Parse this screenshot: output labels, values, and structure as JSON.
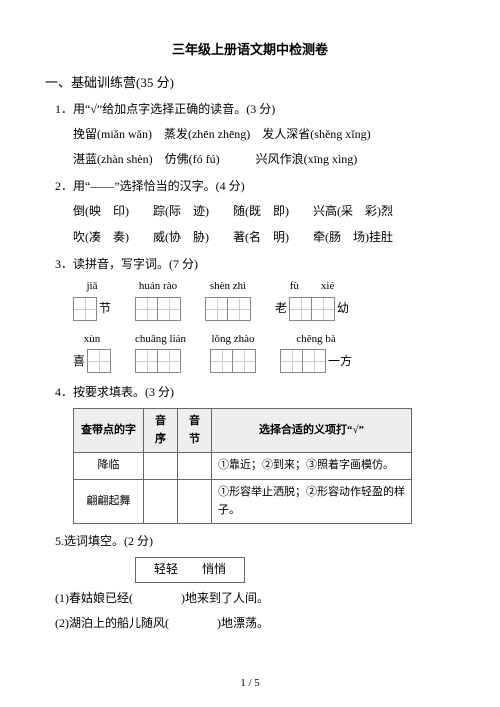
{
  "title": "三年级上册语文期中检测卷",
  "section1": {
    "header": "一、基础训练营(35 分)"
  },
  "q1": {
    "stem": "1．用“√”给加点字选择正确的读音。(3 分)",
    "row1a": "挽留(miǎn  wǎn)　蒸发(zhēn  zhēng)　发人深省(shěng  xǐng)",
    "row1b": "湛蓝(zhàn  shèn)　仿佛(fó  fú)　　　兴风作浪(xīng  xìng)"
  },
  "q2": {
    "stem": "2．用“——”选择恰当的汉字。(4 分)",
    "row2a": "倒(映　印)　　踪(际　迹)　　随(既　即)　　兴高(采　彩)烈",
    "row2b": "吹(凑　奏)　　威(协　胁)　　著(名　明)　　牵(肠　场)挂肚"
  },
  "q3": {
    "stem": "3．读拼音，写字词。(7 分)",
    "row1": [
      {
        "pinyin": "jiā",
        "cells": 1,
        "right": "节"
      },
      {
        "pinyin": "huán  rào",
        "cells": 2
      },
      {
        "pinyin": "shèn  zhì",
        "cells": 2
      },
      {
        "pinyin": "fù　　xié",
        "cells": 2,
        "left": "老",
        "right": "幼"
      }
    ],
    "row2": [
      {
        "pinyin": "xùn",
        "cells": 1,
        "left": "喜"
      },
      {
        "pinyin": "chuāng  lián",
        "cells": 2
      },
      {
        "pinyin": "lǒng  zhào",
        "cells": 2
      },
      {
        "pinyin": "chēng  bà",
        "cells": 2,
        "right": "一方"
      }
    ]
  },
  "q4": {
    "stem": "4．按要求填表。(3 分)",
    "headers": [
      "查带点的字",
      "音序",
      "音节",
      "选择合适的义项打“√”"
    ],
    "rows": [
      {
        "c0": "降临",
        "c3": "①靠近；②到来；③照着字画模仿。"
      },
      {
        "c0": "翩翩起舞",
        "c3": "①形容举止洒脱；②形容动作轻盈的样子。"
      }
    ]
  },
  "q5": {
    "stem": "5.选词填空。(2 分)",
    "box": "轻轻　　悄悄",
    "b1": "(1)春姑娘已经(　　　　)地来到了人间。",
    "b2": "(2)湖泊上的船儿随风(　　　　)地漂荡。"
  },
  "pagenum": "1 / 5"
}
